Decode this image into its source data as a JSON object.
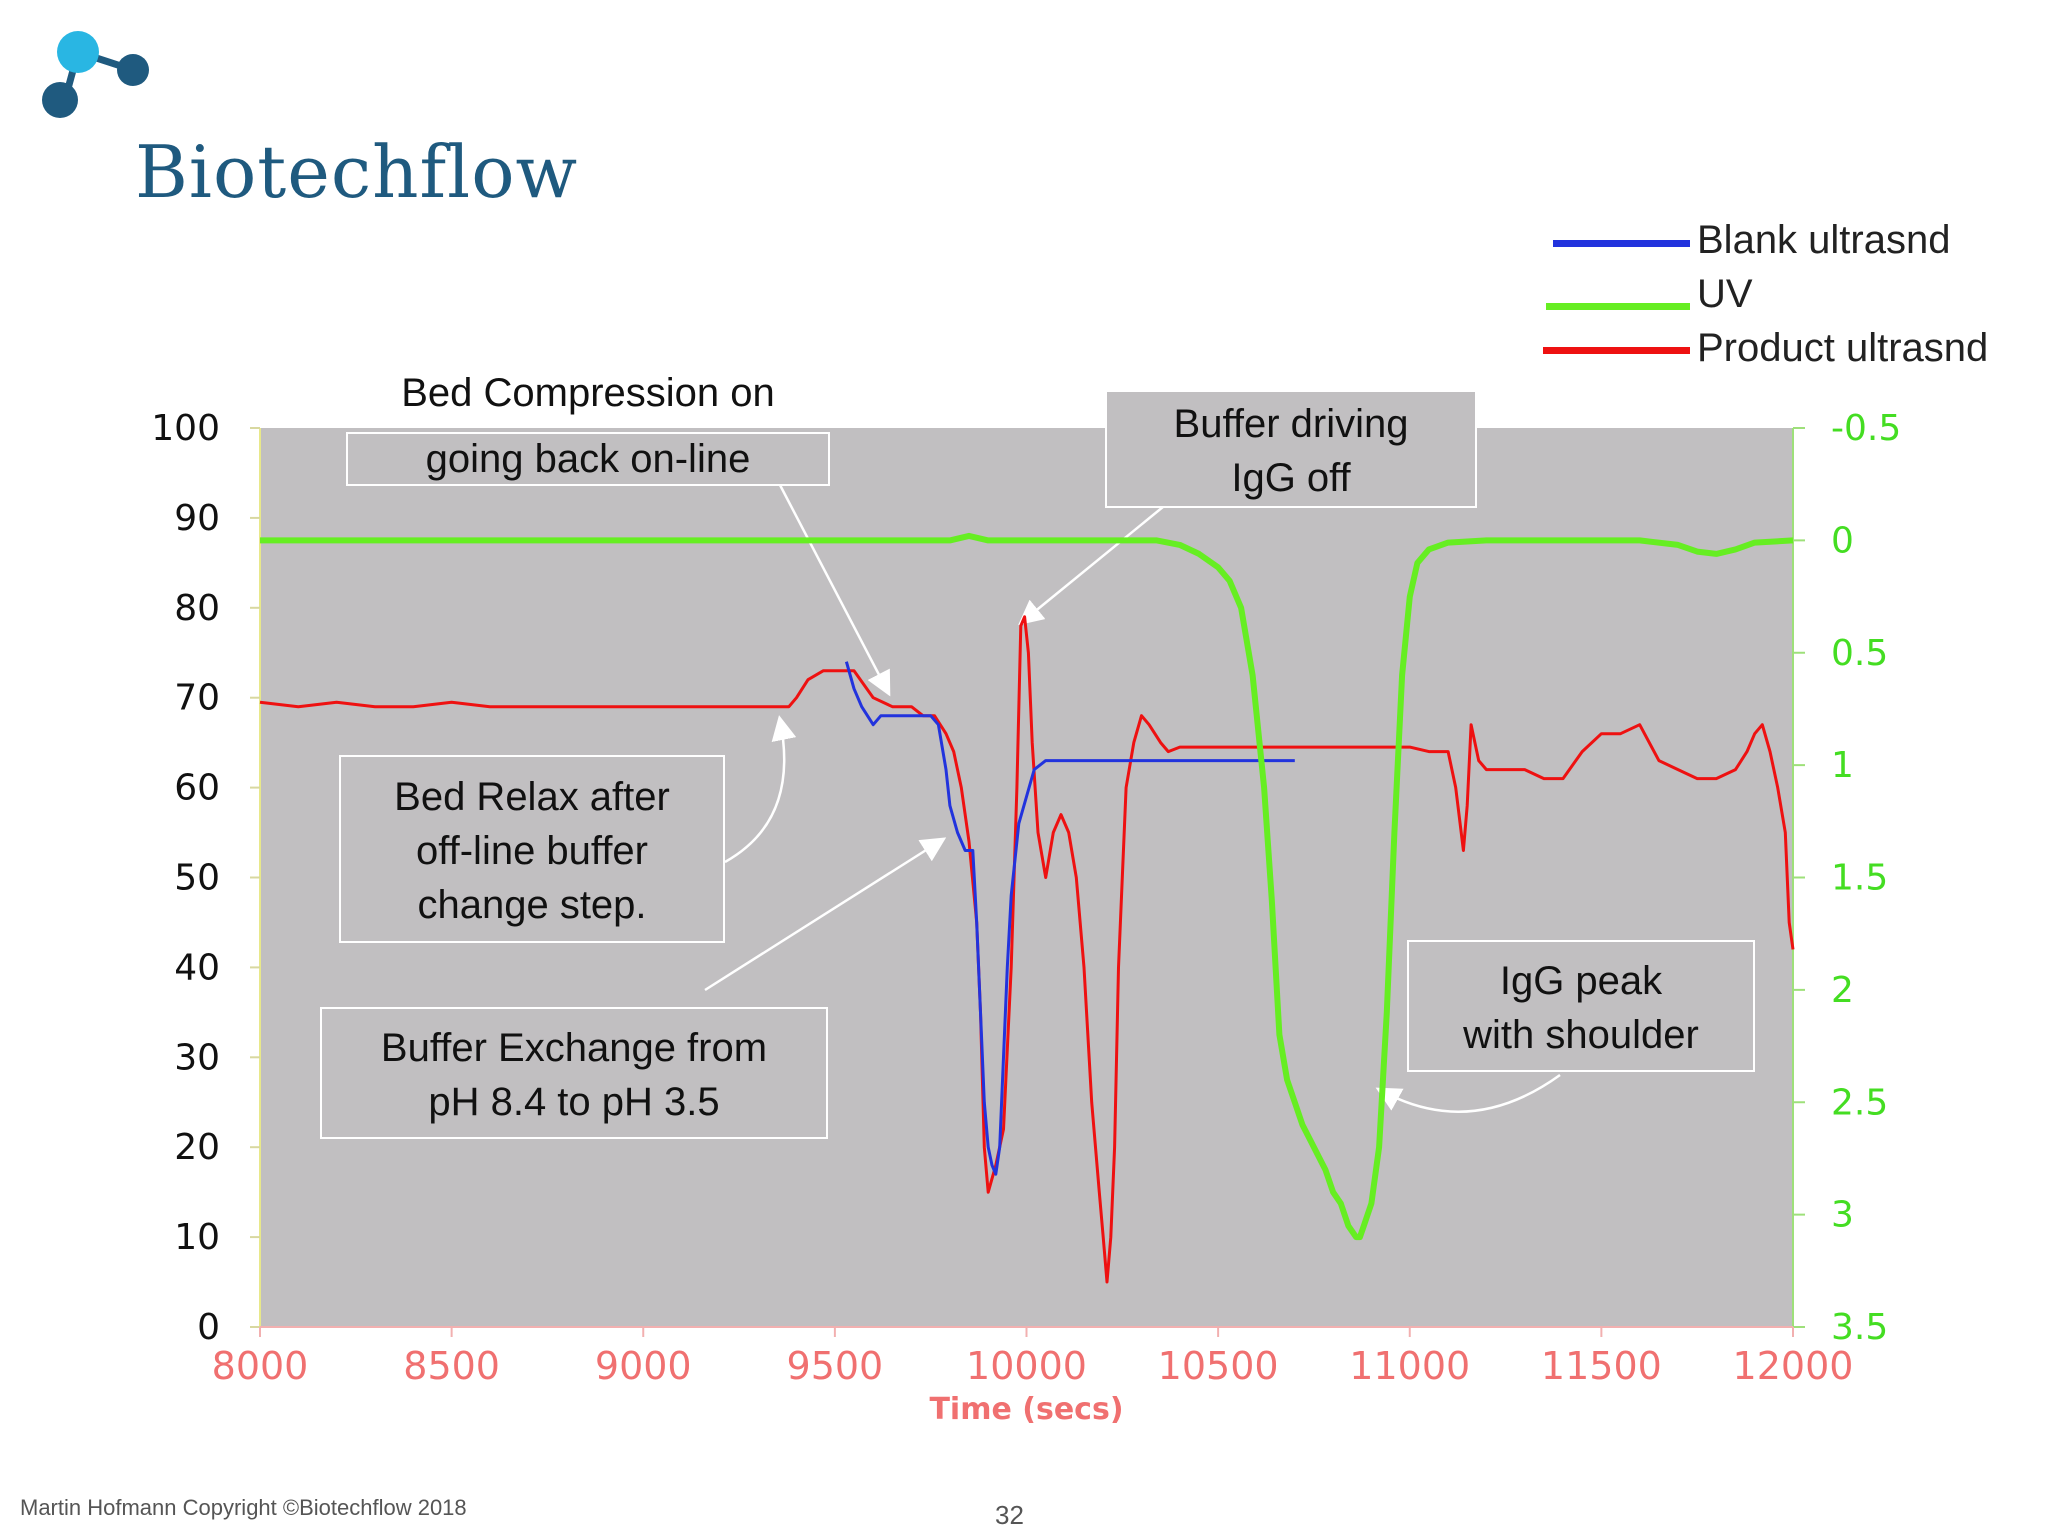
{
  "logo": {
    "brand_name": "Biotechflow"
  },
  "footer": {
    "copyright": "Martin Hofmann  Copyright ©Biotechflow 2018",
    "page_number": "32"
  },
  "legend": [
    {
      "label": "Blank ultrasnd",
      "color": "#2233dd"
    },
    {
      "label": "UV",
      "color": "#66ee22"
    },
    {
      "label": "Product ultrasnd",
      "color": "#ee1111"
    }
  ],
  "callouts": {
    "bed_compression": [
      "Bed Compression on",
      "going back on-line"
    ],
    "buffer_driving": [
      "Buffer driving",
      "IgG off"
    ],
    "bed_relax": [
      "Bed Relax  after",
      "off-line buffer",
      "change step."
    ],
    "buffer_exchange": [
      "Buffer Exchange from",
      "pH 8.4 to pH 3.5"
    ],
    "igg_peak": [
      "IgG peak",
      "with shoulder"
    ]
  },
  "chart_data": {
    "type": "line",
    "xlabel": "Time (secs)",
    "x_ticks": [
      "8000",
      "8500",
      "9000",
      "9500",
      "10000",
      "10500",
      "11000",
      "11500",
      "12000"
    ],
    "xlim": [
      8000,
      12000
    ],
    "y_left_ticks": [
      "0",
      "10",
      "20",
      "30",
      "40",
      "50",
      "60",
      "70",
      "80",
      "90",
      "100"
    ],
    "ylim_left": [
      0,
      100
    ],
    "y_right_ticks": [
      "-0.5",
      "0",
      "0.5",
      "1",
      "1.5",
      "2",
      "2.5",
      "3",
      "3.5"
    ],
    "ylim_right": [
      3.5,
      -0.5
    ],
    "plot_background": "#c1bfc1",
    "x_tick_color": "#f07070",
    "right_tick_color": "#44dd22",
    "series": [
      {
        "name": "Product ultrasnd",
        "axis": "left",
        "color": "#ee1111",
        "x": [
          8000,
          8100,
          8200,
          8300,
          8400,
          8500,
          8600,
          8700,
          8800,
          8900,
          9000,
          9100,
          9200,
          9300,
          9350,
          9380,
          9400,
          9430,
          9470,
          9500,
          9550,
          9600,
          9650,
          9700,
          9730,
          9760,
          9790,
          9810,
          9830,
          9850,
          9870,
          9880,
          9890,
          9900,
          9920,
          9940,
          9960,
          9975,
          9985,
          9995,
          10005,
          10015,
          10030,
          10050,
          10070,
          10090,
          10110,
          10130,
          10150,
          10170,
          10190,
          10200,
          10210,
          10220,
          10230,
          10240,
          10260,
          10280,
          10300,
          10320,
          10350,
          10370,
          10400,
          10450,
          10500,
          10600,
          10700,
          10800,
          10900,
          11000,
          11050,
          11100,
          11120,
          11140,
          11150,
          11160,
          11180,
          11200,
          11250,
          11300,
          11350,
          11400,
          11450,
          11500,
          11550,
          11600,
          11650,
          11700,
          11750,
          11800,
          11850,
          11880,
          11900,
          11920,
          11940,
          11960,
          11980,
          11990,
          12000
        ],
        "y": [
          69.5,
          69,
          69.5,
          69,
          69,
          69.5,
          69,
          69,
          69,
          69,
          69,
          69,
          69,
          69,
          69,
          69,
          70,
          72,
          73,
          73,
          73,
          70,
          69,
          69,
          68,
          68,
          66,
          64,
          60,
          54,
          45,
          35,
          20,
          15,
          18,
          22,
          40,
          60,
          78,
          79,
          75,
          65,
          55,
          50,
          55,
          57,
          55,
          50,
          40,
          25,
          15,
          10,
          5,
          10,
          20,
          40,
          60,
          65,
          68,
          67,
          65,
          64,
          64.5,
          64.5,
          64.5,
          64.5,
          64.5,
          64.5,
          64.5,
          64.5,
          64,
          64,
          60,
          53,
          58,
          67,
          63,
          62,
          62,
          62,
          61,
          61,
          64,
          66,
          66,
          67,
          63,
          62,
          61,
          61,
          62,
          64,
          66,
          67,
          64,
          60,
          55,
          45,
          42
        ]
      },
      {
        "name": "Blank ultrasnd",
        "axis": "left",
        "color": "#2233dd",
        "x": [
          9530,
          9550,
          9570,
          9600,
          9620,
          9650,
          9700,
          9750,
          9770,
          9790,
          9800,
          9820,
          9840,
          9860,
          9870,
          9880,
          9890,
          9900,
          9910,
          9920,
          9930,
          9940,
          9950,
          9960,
          9980,
          10000,
          10020,
          10050,
          10100,
          10200,
          10300,
          10400,
          10500,
          10600,
          10700
        ],
        "y": [
          74,
          71,
          69,
          67,
          68,
          68,
          68,
          68,
          67,
          62,
          58,
          55,
          53,
          53,
          45,
          35,
          25,
          20,
          18,
          17,
          20,
          30,
          40,
          48,
          56,
          59,
          62,
          63,
          63,
          63,
          63,
          63,
          63,
          63,
          63
        ]
      },
      {
        "name": "UV",
        "axis": "right",
        "color": "#66ee22",
        "x": [
          8000,
          8500,
          9000,
          9500,
          9800,
          9850,
          9900,
          10000,
          10200,
          10340,
          10400,
          10450,
          10500,
          10530,
          10560,
          10590,
          10620,
          10640,
          10660,
          10680,
          10700,
          10720,
          10750,
          10780,
          10800,
          10820,
          10840,
          10860,
          10870,
          10880,
          10900,
          10920,
          10940,
          10960,
          10980,
          11000,
          11020,
          11050,
          11100,
          11200,
          11300,
          11400,
          11500,
          11600,
          11700,
          11750,
          11800,
          11850,
          11900,
          12000
        ],
        "y": [
          0,
          0,
          0,
          0,
          0,
          -0.02,
          0,
          0,
          0,
          0,
          0.02,
          0.06,
          0.12,
          0.18,
          0.3,
          0.6,
          1.1,
          1.6,
          2.2,
          2.4,
          2.5,
          2.6,
          2.7,
          2.8,
          2.9,
          2.95,
          3.05,
          3.1,
          3.1,
          3.05,
          2.95,
          2.7,
          2.1,
          1.3,
          0.6,
          0.25,
          0.1,
          0.04,
          0.01,
          0,
          0,
          0,
          0,
          0,
          0.02,
          0.05,
          0.06,
          0.04,
          0.01,
          0
        ]
      }
    ]
  }
}
